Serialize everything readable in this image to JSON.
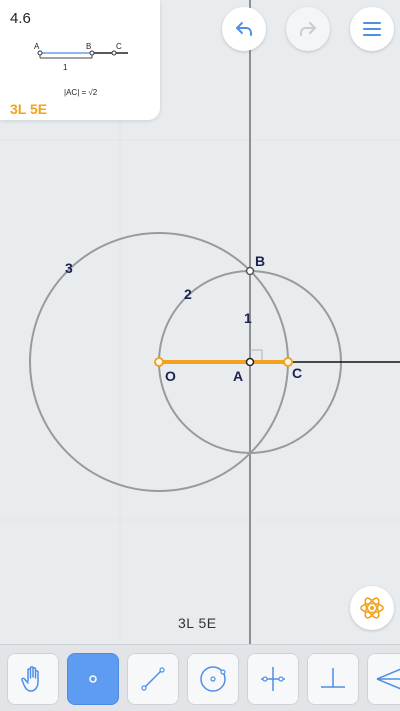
{
  "level": {
    "number": "4.6",
    "score": "3L 5E"
  },
  "goal_diagram": {
    "points": [
      "A",
      "B",
      "C"
    ],
    "segment_label": "1",
    "formula": "|AC| = √2"
  },
  "toolbar_top": {
    "undo": "undo-icon",
    "redo": "redo-icon",
    "menu": "hamburger-menu-icon"
  },
  "canvas": {
    "points": {
      "O": "O",
      "A": "A",
      "B": "B",
      "C": "C"
    },
    "step_labels": [
      "1",
      "2",
      "3"
    ]
  },
  "hint": {
    "icon": "atom-icon"
  },
  "footer": {
    "score": "3L 5E"
  },
  "tools": [
    {
      "name": "move-tool",
      "icon": "hand-icon",
      "active": false
    },
    {
      "name": "point-tool",
      "icon": "point-icon",
      "active": true
    },
    {
      "name": "line-tool",
      "icon": "line-icon",
      "active": false
    },
    {
      "name": "circle-tool",
      "icon": "circle-icon",
      "active": false
    },
    {
      "name": "perpendicular-bisector-tool",
      "icon": "bisector-icon",
      "active": false
    },
    {
      "name": "perpendicular-tool",
      "icon": "perpendicular-icon",
      "active": false
    },
    {
      "name": "angle-bisector-tool",
      "icon": "angle-bisector-icon",
      "active": false
    }
  ],
  "colors": {
    "accent": "#f2a21d",
    "construction": "#999999",
    "label": "#1c2251",
    "active_tool": "#5d9cf0"
  }
}
